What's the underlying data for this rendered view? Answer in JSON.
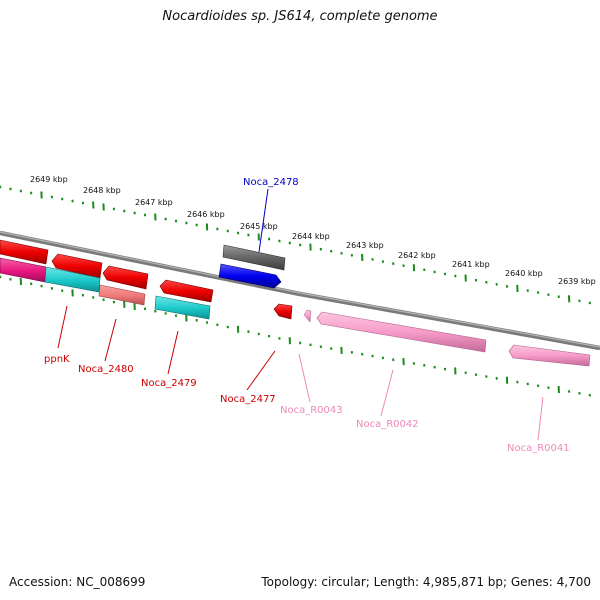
{
  "title": "Nocardioides sp. JS614, complete genome",
  "footer": {
    "accession": "Accession: NC_008699",
    "summary": "Topology: circular; Length: 4,985,871 bp; Genes: 4,700"
  },
  "ruler": {
    "unit": "kbp",
    "tick_labels": [
      "2649 kbp",
      "2648 kbp",
      "2647 kbp",
      "2646 kbp",
      "2645 kbp",
      "2644 kbp",
      "2643 kbp",
      "2642 kbp",
      "2641 kbp",
      "2640 kbp",
      "2639 kbp"
    ]
  },
  "genes": [
    {
      "label": "Noca_2478",
      "color": "#0000cc",
      "strand": "forward"
    },
    {
      "label": "ppnK",
      "color": "#cc0000",
      "strand": "reverse"
    },
    {
      "label": "Noca_2480",
      "color": "#cc0000",
      "strand": "reverse"
    },
    {
      "label": "Noca_2479",
      "color": "#cc0000",
      "strand": "reverse"
    },
    {
      "label": "Noca_2477",
      "color": "#cc0000",
      "strand": "reverse"
    },
    {
      "label": "Noca_R0043",
      "color": "#ee88bb",
      "strand": "reverse"
    },
    {
      "label": "Noca_R0042",
      "color": "#ee88bb",
      "strand": "reverse"
    },
    {
      "label": "Noca_R0041",
      "color": "#ee88bb",
      "strand": "reverse"
    }
  ],
  "colors": {
    "backbone": "#808080",
    "ruler": "#1a8a1a",
    "cds_red": "#ee0000",
    "cds_cyan": "#19c8c8",
    "cds_salmon": "#f07878",
    "cds_magenta": "#e8157f",
    "cds_gray": "#666666",
    "cds_blue": "#0000ee",
    "rrna_pink": "#f79cc8"
  }
}
